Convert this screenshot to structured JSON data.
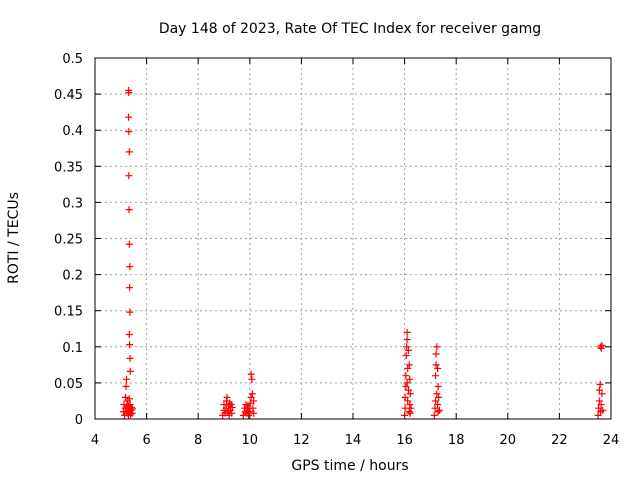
{
  "chart_data": {
    "type": "scatter",
    "title": "Day 148 of 2023, Rate Of TEC Index for receiver gamg",
    "xlabel": "GPS time / hours",
    "ylabel": "ROTI / TECUs",
    "xlim": [
      4,
      24
    ],
    "ylim": [
      0,
      0.5
    ],
    "xticks": [
      "4",
      "6",
      "8",
      "10",
      "12",
      "14",
      "16",
      "18",
      "20",
      "22",
      "24"
    ],
    "yticks": [
      "0",
      "0.05",
      "0.1",
      "0.15",
      "0.2",
      "0.25",
      "0.3",
      "0.35",
      "0.4",
      "0.45",
      "0.5"
    ],
    "grid": true,
    "marker": "+",
    "color": "#ff0000",
    "series": [
      {
        "points": [
          [
            5.1,
            0.01
          ],
          [
            5.12,
            0.02
          ],
          [
            5.15,
            0.005
          ],
          [
            5.17,
            0.015
          ],
          [
            5.18,
            0.03
          ],
          [
            5.2,
            0.045
          ],
          [
            5.22,
            0.055
          ],
          [
            5.22,
            0.01
          ],
          [
            5.24,
            0.02
          ],
          [
            5.25,
            0.008
          ],
          [
            5.26,
            0.025
          ],
          [
            5.28,
            0.012
          ],
          [
            5.3,
            0.018
          ],
          [
            5.3,
            0.005
          ],
          [
            5.32,
            0.015
          ],
          [
            5.33,
            0.028
          ],
          [
            5.35,
            0.01
          ],
          [
            5.36,
            0.02
          ],
          [
            5.38,
            0.006
          ],
          [
            5.4,
            0.012
          ],
          [
            5.42,
            0.016
          ],
          [
            5.44,
            0.008
          ],
          [
            5.45,
            0.014
          ],
          [
            5.3,
            0.455
          ],
          [
            5.31,
            0.452
          ],
          [
            5.3,
            0.418
          ],
          [
            5.31,
            0.398
          ],
          [
            5.33,
            0.37
          ],
          [
            5.31,
            0.337
          ],
          [
            5.32,
            0.29
          ],
          [
            5.33,
            0.242
          ],
          [
            5.35,
            0.211
          ],
          [
            5.34,
            0.182
          ],
          [
            5.35,
            0.148
          ],
          [
            5.33,
            0.117
          ],
          [
            5.34,
            0.103
          ],
          [
            5.36,
            0.084
          ],
          [
            5.37,
            0.066
          ],
          [
            8.95,
            0.005
          ],
          [
            9.0,
            0.012
          ],
          [
            9.0,
            0.02
          ],
          [
            9.05,
            0.008
          ],
          [
            9.08,
            0.015
          ],
          [
            9.1,
            0.025
          ],
          [
            9.12,
            0.03
          ],
          [
            9.15,
            0.01
          ],
          [
            9.18,
            0.018
          ],
          [
            9.2,
            0.005
          ],
          [
            9.22,
            0.022
          ],
          [
            9.25,
            0.012
          ],
          [
            9.28,
            0.02
          ],
          [
            9.3,
            0.008
          ],
          [
            9.32,
            0.016
          ],
          [
            9.75,
            0.005
          ],
          [
            9.8,
            0.015
          ],
          [
            9.82,
            0.01
          ],
          [
            9.85,
            0.02
          ],
          [
            9.88,
            0.008
          ],
          [
            9.9,
            0.012
          ],
          [
            9.92,
            0.018
          ],
          [
            9.95,
            0.005
          ],
          [
            9.97,
            0.015
          ],
          [
            10.0,
            0.01
          ],
          [
            10.02,
            0.022
          ],
          [
            10.05,
            0.03
          ],
          [
            10.05,
            0.062
          ],
          [
            10.08,
            0.055
          ],
          [
            10.1,
            0.035
          ],
          [
            10.12,
            0.015
          ],
          [
            10.15,
            0.008
          ],
          [
            10.15,
            0.025
          ],
          [
            16.0,
            0.005
          ],
          [
            16.02,
            0.015
          ],
          [
            16.02,
            0.03
          ],
          [
            16.05,
            0.045
          ],
          [
            16.05,
            0.06
          ],
          [
            16.06,
            0.088
          ],
          [
            16.08,
            0.1
          ],
          [
            16.1,
            0.11
          ],
          [
            16.1,
            0.12
          ],
          [
            16.1,
            0.05
          ],
          [
            16.12,
            0.07
          ],
          [
            16.12,
            0.025
          ],
          [
            16.15,
            0.095
          ],
          [
            16.15,
            0.04
          ],
          [
            16.18,
            0.075
          ],
          [
            16.18,
            0.01
          ],
          [
            16.2,
            0.02
          ],
          [
            16.2,
            0.055
          ],
          [
            16.22,
            0.008
          ],
          [
            16.22,
            0.035
          ],
          [
            16.25,
            0.015
          ],
          [
            17.15,
            0.005
          ],
          [
            17.18,
            0.015
          ],
          [
            17.2,
            0.025
          ],
          [
            17.2,
            0.06
          ],
          [
            17.22,
            0.075
          ],
          [
            17.22,
            0.09
          ],
          [
            17.25,
            0.1
          ],
          [
            17.25,
            0.035
          ],
          [
            17.28,
            0.02
          ],
          [
            17.28,
            0.07
          ],
          [
            17.3,
            0.01
          ],
          [
            17.3,
            0.045
          ],
          [
            17.32,
            0.03
          ],
          [
            17.35,
            0.012
          ],
          [
            23.5,
            0.005
          ],
          [
            23.52,
            0.015
          ],
          [
            23.55,
            0.025
          ],
          [
            23.55,
            0.04
          ],
          [
            23.58,
            0.048
          ],
          [
            23.6,
            0.01
          ],
          [
            23.62,
            0.02
          ],
          [
            23.6,
            0.1
          ],
          [
            23.62,
            0.098
          ],
          [
            23.65,
            0.102
          ],
          [
            23.65,
            0.035
          ],
          [
            23.68,
            0.012
          ]
        ]
      }
    ]
  }
}
